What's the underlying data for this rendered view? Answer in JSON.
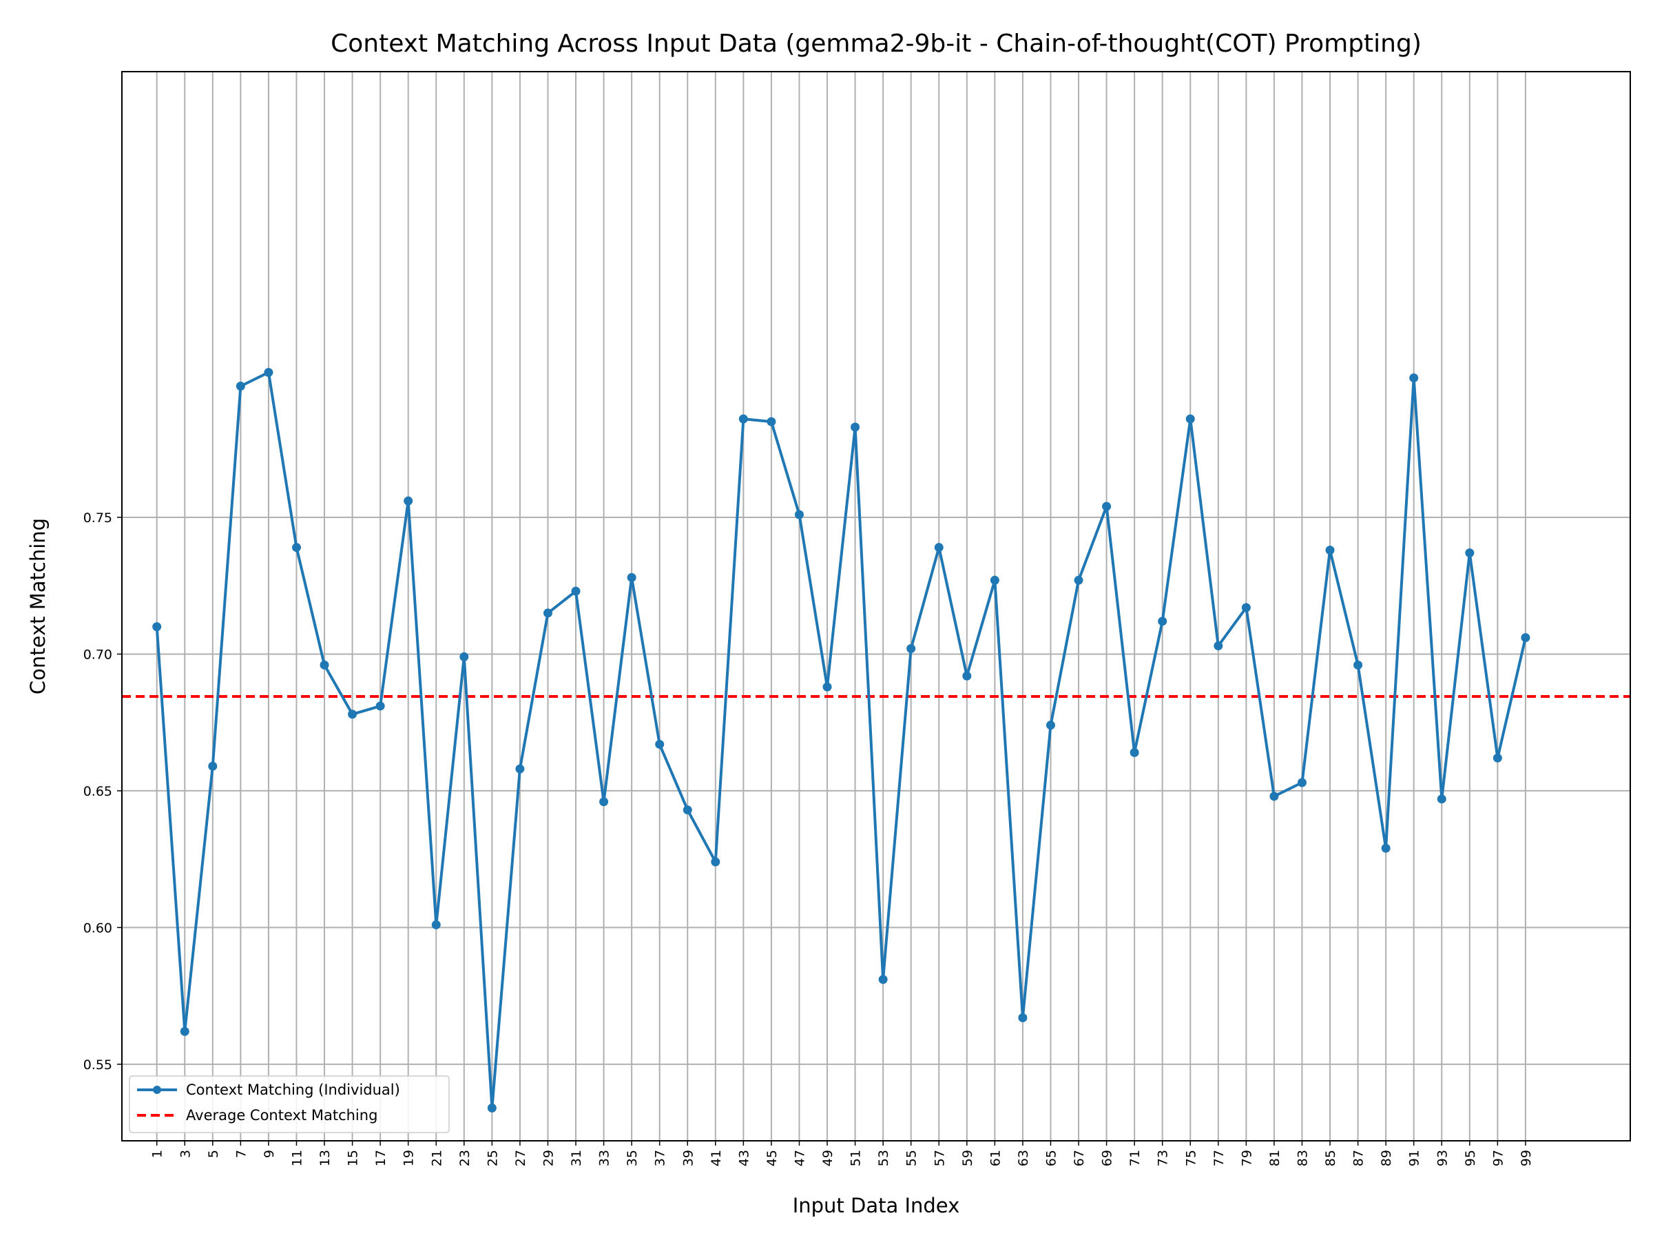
{
  "chart_data": {
    "type": "line",
    "title": "Context Matching Across Input Data (gemma2-9b-it - Chain-of-thought(COT) Prompting)",
    "xlabel": "Input Data Index",
    "ylabel": "Context Matching",
    "xlim": [
      -1.5,
      106.5
    ],
    "ylim": [
      0.522,
      0.913
    ],
    "x_ticks": [
      1,
      3,
      5,
      7,
      9,
      11,
      13,
      15,
      17,
      19,
      21,
      23,
      25,
      27,
      29,
      31,
      33,
      35,
      37,
      39,
      41,
      43,
      45,
      47,
      49,
      51,
      53,
      55,
      57,
      59,
      61,
      63,
      65,
      67,
      69,
      71,
      73,
      75,
      77,
      79,
      81,
      83,
      85,
      87,
      89,
      91,
      93,
      95,
      97,
      99
    ],
    "y_ticks": [
      "0.55",
      "0.60",
      "0.65",
      "0.70",
      "0.75"
    ],
    "grid": true,
    "legend_position": "lower-left",
    "series": [
      {
        "name": "Context Matching (Individual)",
        "color": "#1f77b4",
        "marker": "circle",
        "x": [
          1,
          3,
          5,
          7,
          9,
          11,
          13,
          15,
          17,
          19,
          21,
          23,
          25,
          27,
          29,
          31,
          33,
          35,
          37,
          39,
          41,
          43,
          45,
          47,
          49,
          51,
          53,
          55,
          57,
          59,
          61,
          63,
          65,
          67,
          69,
          71,
          73,
          75,
          77,
          79,
          81,
          83,
          85,
          87,
          89,
          91,
          93,
          95,
          97,
          99
        ],
        "values": [
          0.71,
          0.562,
          0.659,
          0.798,
          0.803,
          0.739,
          0.696,
          0.678,
          0.681,
          0.756,
          0.601,
          0.699,
          0.534,
          0.658,
          0.715,
          0.723,
          0.646,
          0.728,
          0.667,
          0.643,
          0.624,
          0.786,
          0.785,
          0.751,
          0.688,
          0.783,
          0.581,
          0.702,
          0.739,
          0.692,
          0.727,
          0.567,
          0.674,
          0.727,
          0.754,
          0.664,
          0.712,
          0.786,
          0.703,
          0.717,
          0.648,
          0.653,
          0.738,
          0.696,
          0.629,
          0.801,
          0.647,
          0.737,
          0.662,
          0.706
        ]
      },
      {
        "name": "Average Context Matching",
        "color": "#ff0000",
        "style": "dashed",
        "value": 0.6845
      }
    ]
  }
}
